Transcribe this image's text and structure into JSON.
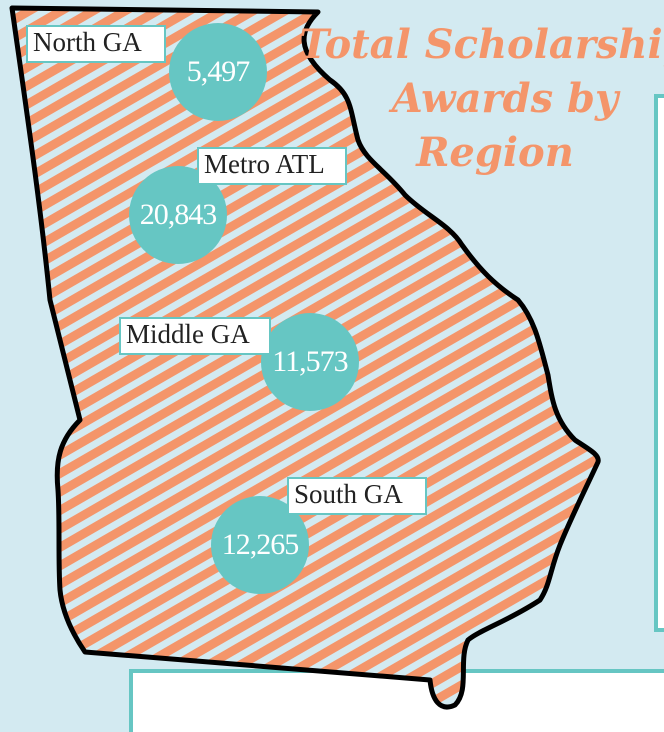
{
  "title_lines": [
    "Total Scholarship",
    "Awards by",
    "Region"
  ],
  "regions": [
    {
      "name": "North GA",
      "value": "5,497"
    },
    {
      "name": "Metro ATL",
      "value": "20,843"
    },
    {
      "name": "Middle GA",
      "value": "11,573"
    },
    {
      "name": "South GA",
      "value": "12,265"
    }
  ]
}
